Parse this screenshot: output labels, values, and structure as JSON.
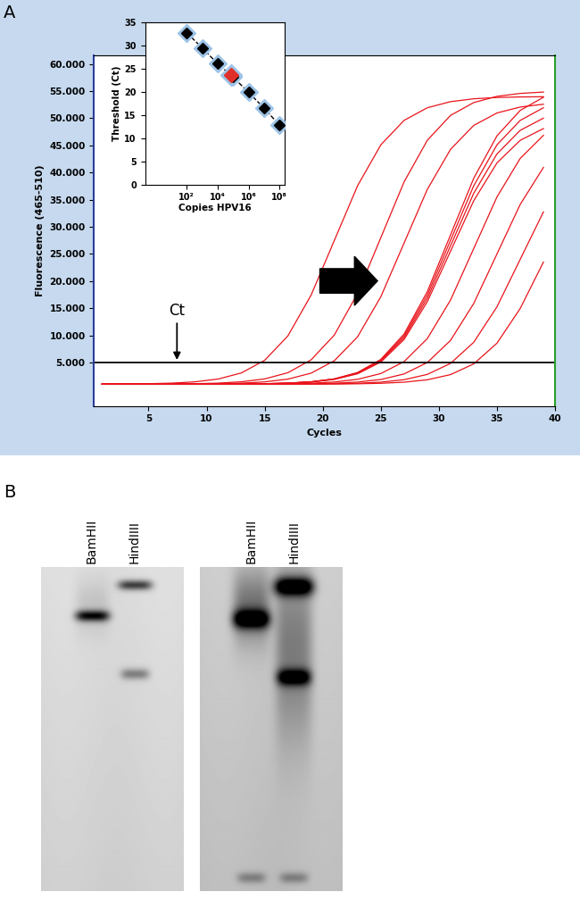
{
  "panel_labels": [
    "A",
    "B"
  ],
  "chart_data": [
    {
      "type": "line",
      "xlabel": "Cycles",
      "ylabel": "Fluorescence (465-510)",
      "xlim": [
        0.3,
        40
      ],
      "ylim": [
        -3000,
        61500
      ],
      "xticks": [
        5,
        10,
        15,
        20,
        25,
        30,
        35,
        40
      ],
      "yticks": [
        {
          "value": 5000,
          "label": "5.000"
        },
        {
          "value": 10000,
          "label": "10.000"
        },
        {
          "value": 15000,
          "label": "15.000"
        },
        {
          "value": 20000,
          "label": "20.000"
        },
        {
          "value": 25000,
          "label": "25.000"
        },
        {
          "value": 30000,
          "label": "30.000"
        },
        {
          "value": 35000,
          "label": "35.000"
        },
        {
          "value": 40000,
          "label": "40.000"
        },
        {
          "value": 45000,
          "label": "45.000"
        },
        {
          "value": 50000,
          "label": "50.000"
        },
        {
          "value": 55000,
          "label": "55.000"
        },
        {
          "value": 60000,
          "label": "60.000"
        }
      ],
      "threshold": 5000,
      "annotations": [
        "Ct"
      ],
      "x": [
        1,
        3,
        5,
        7,
        9,
        11,
        13,
        15,
        17,
        19,
        21,
        23,
        25,
        27,
        29,
        31,
        33,
        35,
        37,
        39
      ],
      "series": [
        {
          "color": "#e8141b",
          "values": [
            1020,
            1040,
            1088,
            1196,
            1435,
            1954,
            3078,
            5410,
            9904,
            17430,
            27500,
            37570,
            45100,
            49600,
            51930,
            53050,
            53580,
            53820,
            53920,
            53960
          ]
        },
        {
          "color": "#e8141b",
          "values": [
            1000,
            1010,
            1020,
            1040,
            1090,
            1200,
            1443,
            1972,
            3117,
            5493,
            10070,
            17740,
            28000,
            38260,
            45930,
            50520,
            52890,
            54030,
            54570,
            54820
          ]
        },
        {
          "color": "#e8141b",
          "values": [
            1000,
            1000,
            1010,
            1020,
            1040,
            1086,
            1192,
            1426,
            1936,
            3038,
            5326,
            9736,
            17120,
            27000,
            36880,
            44260,
            48680,
            50970,
            52060,
            52580
          ]
        },
        {
          "color": "#e8141b",
          "values": [
            1000,
            1000,
            1000,
            1000,
            1010,
            1020,
            1040,
            1088,
            1196,
            1435,
            1954,
            3078,
            5410,
            9904,
            17430,
            27500,
            37570,
            45100,
            49600,
            51930
          ]
        },
        {
          "color": "#e8141b",
          "values": [
            1000,
            1000,
            1000,
            1000,
            1010,
            1020,
            1040,
            1085,
            1189,
            1418,
            1918,
            3000,
            5243,
            9568,
            16810,
            26500,
            36190,
            43430,
            47770,
            50010
          ]
        },
        {
          "color": "#e8141b",
          "values": [
            1000,
            1000,
            1000,
            1000,
            1010,
            1020,
            1040,
            1081,
            1181,
            1402,
            1882,
            2921,
            5077,
            9232,
            16190,
            25500,
            34810,
            41770,
            45930,
            48090
          ]
        },
        {
          "color": "#e8141b",
          "values": [
            1000,
            1000,
            1000,
            1000,
            1010,
            1020,
            1040,
            1091,
            1204,
            1451,
            1990,
            3156,
            5576,
            10240,
            18050,
            28500,
            38950,
            46760,
            51440,
            53860
          ]
        },
        {
          "color": "#e8141b",
          "values": [
            1000,
            1000,
            1000,
            1000,
            1000,
            1010,
            1020,
            1040,
            1083,
            1185,
            1410,
            1900,
            2960,
            5160,
            9400,
            16500,
            26000,
            35500,
            42600,
            46850
          ]
        },
        {
          "color": "#e8141b",
          "values": [
            1000,
            1000,
            1000,
            1000,
            1000,
            1000,
            1010,
            1015,
            1036,
            1080,
            1178,
            1394,
            1864,
            2882,
            4994,
            9064,
            15880,
            25000,
            34120,
            40940
          ]
        },
        {
          "color": "#e8141b",
          "values": [
            1000,
            1000,
            1000,
            1000,
            1000,
            1000,
            1000,
            1010,
            1014,
            1035,
            1076,
            1170,
            1377,
            1828,
            2803,
            4827,
            8728,
            15260,
            24000,
            32740
          ]
        },
        {
          "color": "#e8141b",
          "values": [
            1000,
            1000,
            1000,
            1000,
            1000,
            1000,
            1000,
            1000,
            1010,
            1014,
            1034,
            1075,
            1167,
            1369,
            1810,
            2764,
            4744,
            8560,
            14950,
            23500
          ]
        }
      ]
    },
    {
      "type": "scatter",
      "log": "x",
      "xlabel": "Copies HPV16",
      "ylabel": "Threshold (Ct)",
      "xlim": [
        0.2,
        200000000
      ],
      "ylim": [
        0,
        35
      ],
      "xticks": [
        {
          "value": 100,
          "label": "10²"
        },
        {
          "value": 10000,
          "label": "10⁴"
        },
        {
          "value": 1000000,
          "label": "10⁶"
        },
        {
          "value": 100000000,
          "label": "10⁸"
        }
      ],
      "yticks": [
        0,
        5,
        10,
        15,
        20,
        25,
        30,
        35
      ],
      "series": [
        {
          "color": "#000000",
          "marker": "D",
          "line_style": "dashed",
          "x": [
            100,
            1000,
            10000,
            100000,
            1000000,
            10000000,
            100000000
          ],
          "values": [
            32.8,
            29.5,
            26.1,
            23.2,
            19.9,
            16.5,
            12.8
          ]
        },
        {
          "color": "#e0302a",
          "marker": "D",
          "x": [
            70000
          ],
          "values": [
            23.6
          ]
        }
      ]
    }
  ],
  "blot": [
    {
      "lanes": [
        "BamHII",
        "HindIIII"
      ]
    },
    {
      "lanes": [
        "BamHII",
        "HindIIII"
      ]
    }
  ]
}
